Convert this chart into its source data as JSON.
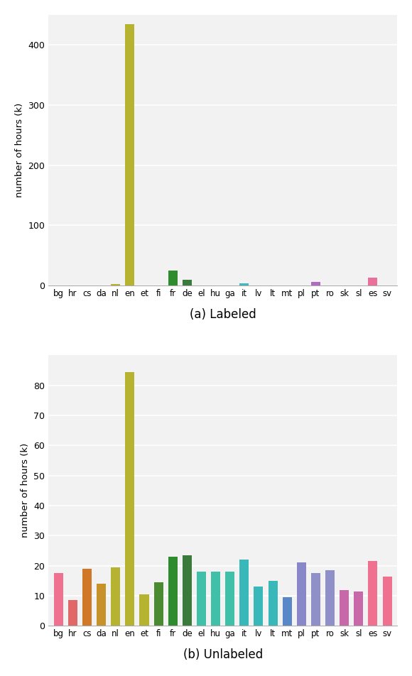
{
  "languages": [
    "bg",
    "hr",
    "cs",
    "da",
    "nl",
    "en",
    "et",
    "fi",
    "fr",
    "de",
    "el",
    "hu",
    "ga",
    "it",
    "lv",
    "lt",
    "mt",
    "pl",
    "pt",
    "ro",
    "sk",
    "sl",
    "es",
    "sv"
  ],
  "labeled_values": [
    0,
    0,
    0,
    0,
    2,
    435,
    0,
    0,
    25,
    9,
    0,
    0,
    0,
    3,
    0,
    0,
    0,
    0,
    6,
    0,
    0,
    0,
    13,
    0
  ],
  "unlabeled_values": [
    17.5,
    8.5,
    19,
    14,
    19.5,
    84.5,
    10.5,
    14.5,
    23,
    23.5,
    18,
    18,
    18,
    22,
    13,
    15,
    9.5,
    21,
    17.5,
    18.5,
    12,
    11.5,
    21.5,
    16.5
  ],
  "labeled_colors": [
    "#c8c8c8",
    "#c8c8c8",
    "#c8c8c8",
    "#c8c8c8",
    "#b5b330",
    "#b5b330",
    "#c8c8c8",
    "#c8c8c8",
    "#2e8b2e",
    "#3a7a3a",
    "#c8c8c8",
    "#c8c8c8",
    "#c8c8c8",
    "#40b8c0",
    "#c8c8c8",
    "#c8c8c8",
    "#c8c8c8",
    "#c8c8c8",
    "#b06ac0",
    "#c8c8c8",
    "#c8c8c8",
    "#c8c8c8",
    "#e8709a",
    "#c8c8c8"
  ],
  "unlabeled_colors": [
    "#f07090",
    "#e06868",
    "#d07828",
    "#c8922a",
    "#b5b330",
    "#b5b330",
    "#b5b330",
    "#4a8a30",
    "#2e8b2e",
    "#3a7a3a",
    "#40c0a8",
    "#40c0a8",
    "#40c0a8",
    "#38b8b8",
    "#38b8b8",
    "#38b8b8",
    "#5888c8",
    "#8888c8",
    "#9090c8",
    "#9090c8",
    "#c868a8",
    "#c868a8",
    "#f07090",
    "#f07090"
  ],
  "ylabel": "number of hours (k)",
  "label_a": "(a) Labeled",
  "label_b": "(b) Unlabeled",
  "labeled_yticks": [
    0,
    100,
    200,
    300,
    400
  ],
  "unlabeled_yticks": [
    0,
    10,
    20,
    30,
    40,
    50,
    60,
    70,
    80
  ],
  "labeled_ylim": [
    0,
    450
  ],
  "unlabeled_ylim": [
    0,
    90
  ],
  "background_color": "#f2f2f2"
}
